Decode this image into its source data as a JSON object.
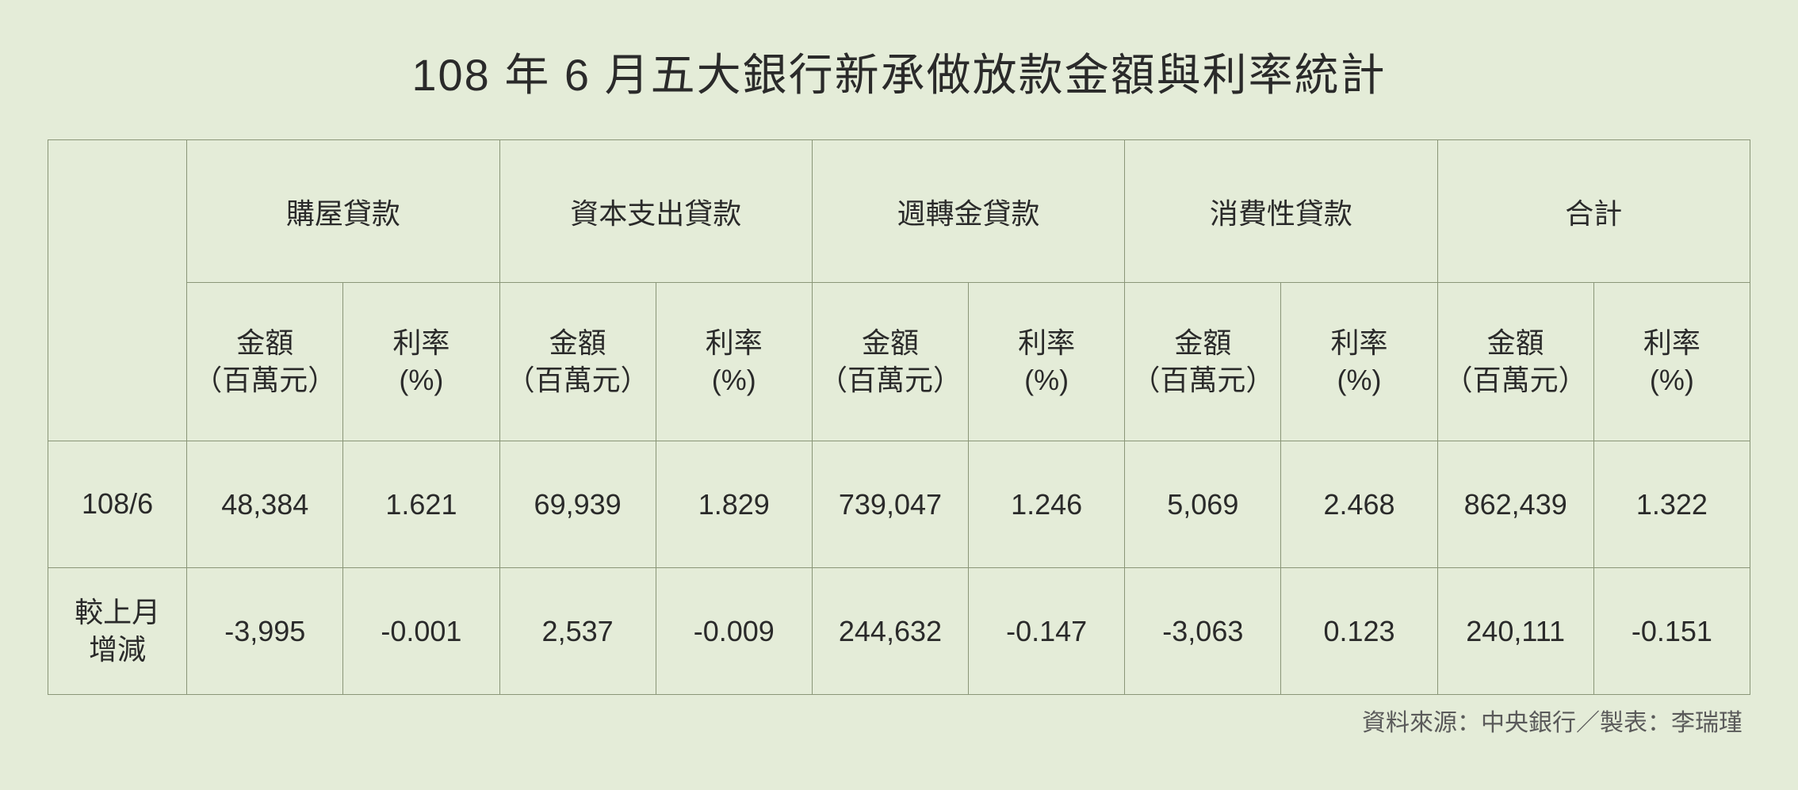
{
  "title": "108 年 6 月五大銀行新承做放款金額與利率統計",
  "table": {
    "categories": [
      "購屋貸款",
      "資本支出貸款",
      "週轉金貸款",
      "消費性貸款",
      "合計"
    ],
    "sub_amount": "金額\n（百萬元）",
    "sub_rate": "利率\n(%)",
    "rows": [
      {
        "label": "108/6",
        "values": [
          "48,384",
          "1.621",
          "69,939",
          "1.829",
          "739,047",
          "1.246",
          "5,069",
          "2.468",
          "862,439",
          "1.322"
        ]
      },
      {
        "label": "較上月\n增減",
        "values": [
          "-3,995",
          "-0.001",
          "2,537",
          "-0.009",
          "244,632",
          "-0.147",
          "-3,063",
          "0.123",
          "240,111",
          "-0.151"
        ]
      }
    ]
  },
  "source": "資料來源：中央銀行／製表：李瑞瑾",
  "style": {
    "background_color": "#e4ecd8",
    "border_color": "#8a9678",
    "text_color": "#2a2a2a",
    "source_color": "#5a5a5a",
    "title_fontsize": 56,
    "cell_fontsize": 36,
    "source_fontsize": 30
  }
}
